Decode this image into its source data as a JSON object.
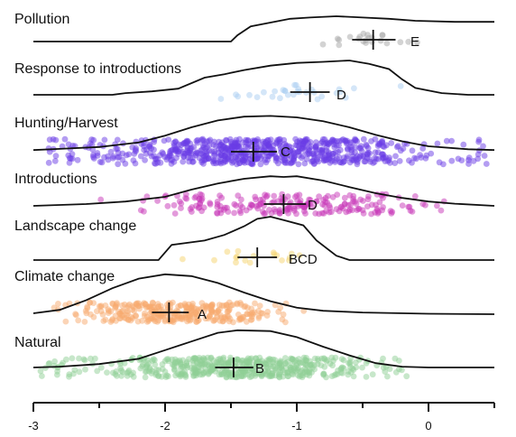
{
  "chart_data": {
    "type": "ridgeline-with-points",
    "title": "",
    "xlabel": "",
    "ylabel": "",
    "xlim": [
      -3.0,
      0.5
    ],
    "xticks": [
      -3,
      -2,
      -1,
      0
    ],
    "xtick_labels": [
      "-3",
      "-2",
      "-1",
      "0"
    ],
    "grid": false,
    "legend": "none",
    "series": [
      {
        "name": "Pollution",
        "group_letter": "E",
        "color": "#a8a8a8",
        "mean": -0.42,
        "ci": [
          -0.58,
          -0.25
        ],
        "points_range": [
          -0.95,
          0.25
        ],
        "n_points": 22,
        "density": [
          [
            -3.0,
            0
          ],
          [
            -1.5,
            0
          ],
          [
            -1.45,
            0.25
          ],
          [
            -1.35,
            0.6
          ],
          [
            -1.2,
            0.75
          ],
          [
            -1.05,
            0.9
          ],
          [
            -0.9,
            0.95
          ],
          [
            -0.7,
            1.0
          ],
          [
            -0.5,
            0.95
          ],
          [
            -0.3,
            0.9
          ],
          [
            -0.1,
            0.82
          ],
          [
            0.2,
            0.78
          ],
          [
            0.5,
            0.78
          ]
        ]
      },
      {
        "name": "Response to introductions",
        "group_letter": "D",
        "color": "#a9cdf2",
        "mean": -0.9,
        "ci": [
          -1.05,
          -0.75
        ],
        "points_range": [
          -1.9,
          -0.2
        ],
        "n_points": 30,
        "density": [
          [
            -3.0,
            0
          ],
          [
            -2.4,
            0
          ],
          [
            -2.3,
            0.05
          ],
          [
            -2.1,
            0.1
          ],
          [
            -1.9,
            0.18
          ],
          [
            -1.7,
            0.5
          ],
          [
            -1.55,
            0.6
          ],
          [
            -1.4,
            0.72
          ],
          [
            -1.2,
            0.85
          ],
          [
            -1.0,
            0.93
          ],
          [
            -0.8,
            0.96
          ],
          [
            -0.6,
            1.0
          ],
          [
            -0.45,
            0.9
          ],
          [
            -0.3,
            0.75
          ],
          [
            -0.2,
            0.45
          ],
          [
            -0.1,
            0.2
          ],
          [
            0.1,
            0.05
          ],
          [
            0.3,
            0
          ],
          [
            0.5,
            0
          ]
        ]
      },
      {
        "name": "Hunting/Harvest",
        "group_letter": "C",
        "color": "#6a3be6",
        "mean": -1.33,
        "ci": [
          -1.5,
          -1.15
        ],
        "points_range": [
          -2.9,
          0.45
        ],
        "n_points": 700,
        "density": [
          [
            -3.0,
            0.02
          ],
          [
            -2.8,
            0.05
          ],
          [
            -2.5,
            0.1
          ],
          [
            -2.2,
            0.22
          ],
          [
            -2.0,
            0.4
          ],
          [
            -1.8,
            0.62
          ],
          [
            -1.6,
            0.8
          ],
          [
            -1.4,
            0.9
          ],
          [
            -1.2,
            0.92
          ],
          [
            -1.0,
            0.88
          ],
          [
            -0.8,
            0.78
          ],
          [
            -0.6,
            0.62
          ],
          [
            -0.4,
            0.42
          ],
          [
            -0.2,
            0.25
          ],
          [
            0.0,
            0.12
          ],
          [
            0.3,
            0.04
          ],
          [
            0.5,
            0.02
          ]
        ]
      },
      {
        "name": "Introductions",
        "group_letter": "D",
        "color": "#c736b8",
        "mean": -1.1,
        "ci": [
          -1.25,
          -0.93
        ],
        "points_range": [
          -2.5,
          0.3
        ],
        "n_points": 220,
        "density": [
          [
            -3.0,
            0
          ],
          [
            -2.6,
            0.05
          ],
          [
            -2.3,
            0.12
          ],
          [
            -2.0,
            0.25
          ],
          [
            -1.8,
            0.45
          ],
          [
            -1.6,
            0.62
          ],
          [
            -1.4,
            0.75
          ],
          [
            -1.2,
            0.82
          ],
          [
            -1.1,
            0.8
          ],
          [
            -1.0,
            0.82
          ],
          [
            -0.8,
            0.7
          ],
          [
            -0.6,
            0.52
          ],
          [
            -0.4,
            0.35
          ],
          [
            -0.2,
            0.22
          ],
          [
            0.0,
            0.12
          ],
          [
            0.2,
            0.06
          ],
          [
            0.5,
            0
          ]
        ]
      },
      {
        "name": "Landscape change",
        "group_letter": "BCD",
        "color": "#f6d46e",
        "mean": -1.3,
        "ci": [
          -1.45,
          -1.15
        ],
        "points_range": [
          -1.95,
          -0.75
        ],
        "n_points": 18,
        "density": [
          [
            -3.0,
            0
          ],
          [
            -2.05,
            0
          ],
          [
            -1.95,
            0.35
          ],
          [
            -1.7,
            0.45
          ],
          [
            -1.55,
            0.58
          ],
          [
            -1.4,
            0.78
          ],
          [
            -1.3,
            0.95
          ],
          [
            -1.2,
            1.0
          ],
          [
            -1.1,
            0.92
          ],
          [
            -0.95,
            0.8
          ],
          [
            -0.85,
            0.45
          ],
          [
            -0.7,
            0.1
          ],
          [
            -0.6,
            0
          ],
          [
            0.5,
            0
          ]
        ]
      },
      {
        "name": "Climate change",
        "group_letter": "A",
        "color": "#f7aa6d",
        "mean": -1.97,
        "ci": [
          -2.1,
          -1.82
        ],
        "points_range": [
          -2.85,
          -0.9
        ],
        "n_points": 320,
        "density": [
          [
            -3.0,
            0.02
          ],
          [
            -2.8,
            0.1
          ],
          [
            -2.6,
            0.32
          ],
          [
            -2.4,
            0.6
          ],
          [
            -2.2,
            0.82
          ],
          [
            -2.0,
            0.92
          ],
          [
            -1.8,
            0.88
          ],
          [
            -1.6,
            0.72
          ],
          [
            -1.4,
            0.5
          ],
          [
            -1.2,
            0.3
          ],
          [
            -1.0,
            0.15
          ],
          [
            -0.8,
            0.08
          ],
          [
            -0.5,
            0.04
          ],
          [
            0.0,
            0.01
          ],
          [
            0.5,
            0
          ]
        ]
      },
      {
        "name": "Natural",
        "group_letter": "B",
        "color": "#8fcf96",
        "mean": -1.48,
        "ci": [
          -1.62,
          -1.33
        ],
        "points_range": [
          -2.95,
          -0.15
        ],
        "n_points": 520,
        "density": [
          [
            -3.0,
            0.02
          ],
          [
            -2.8,
            0.04
          ],
          [
            -2.5,
            0.1
          ],
          [
            -2.2,
            0.22
          ],
          [
            -2.0,
            0.42
          ],
          [
            -1.8,
            0.62
          ],
          [
            -1.6,
            0.82
          ],
          [
            -1.45,
            0.88
          ],
          [
            -1.2,
            0.86
          ],
          [
            -1.0,
            0.72
          ],
          [
            -0.8,
            0.5
          ],
          [
            -0.6,
            0.3
          ],
          [
            -0.4,
            0.12
          ],
          [
            -0.2,
            0.04
          ],
          [
            0.0,
            0.02
          ],
          [
            0.5,
            0.02
          ]
        ]
      }
    ]
  }
}
